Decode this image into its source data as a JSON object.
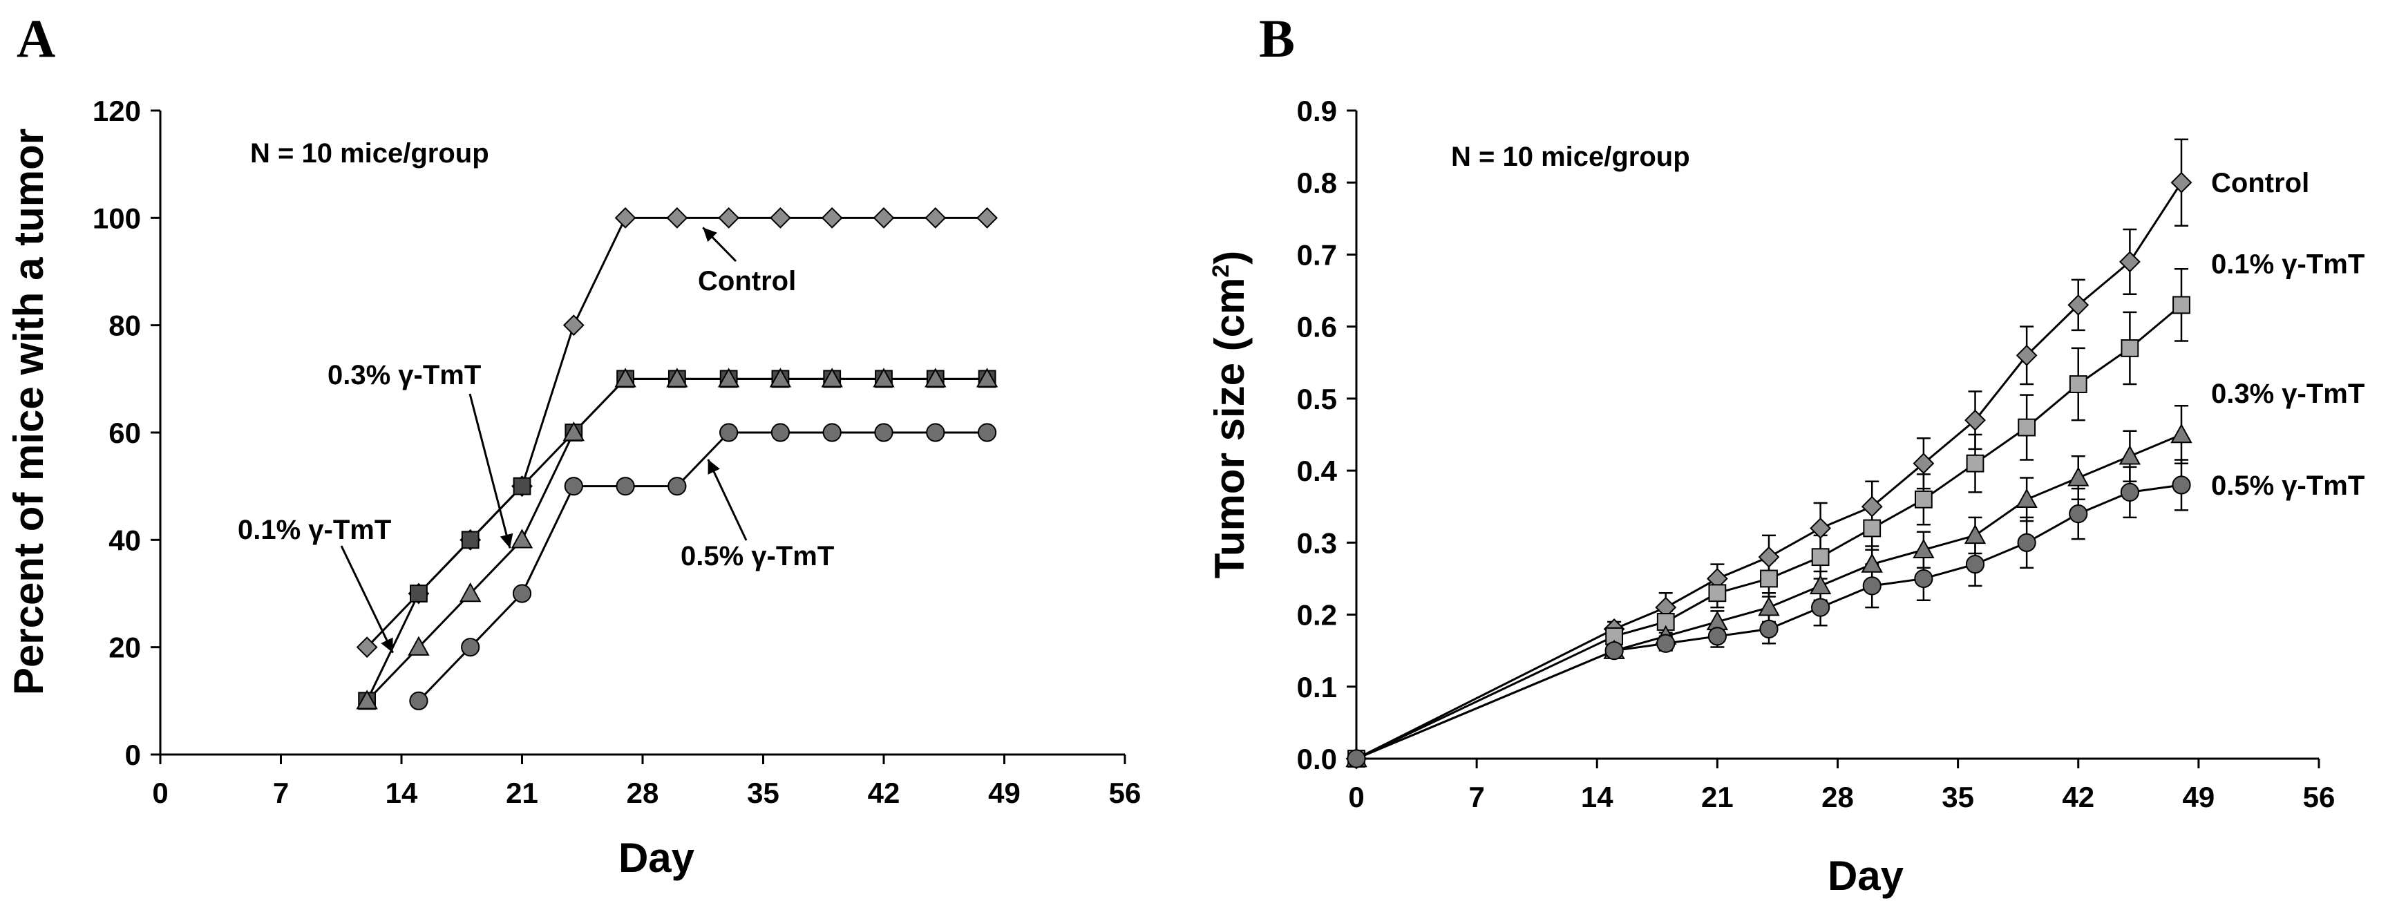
{
  "chart_data": [
    {
      "panel": "A",
      "type": "line",
      "xlabel": "Day",
      "ylabel": "Percent of mice with a tumor",
      "xlim": [
        0,
        56
      ],
      "ylim": [
        0,
        120
      ],
      "xticks": [
        0,
        7,
        14,
        21,
        28,
        35,
        42,
        49,
        56
      ],
      "yticks": [
        0,
        20,
        40,
        60,
        80,
        100,
        120
      ],
      "annotations": [
        {
          "id": "n",
          "text": "N = 10 mice/group"
        },
        {
          "id": "control",
          "text": "Control",
          "series": "Control"
        },
        {
          "id": "t03",
          "text": "0.3% γ-TmT",
          "series": "0.3% γ-TmT"
        },
        {
          "id": "t01",
          "text": "0.1% γ-TmT",
          "series": "0.1% γ-TmT"
        },
        {
          "id": "t05",
          "text": "0.5% γ-TmT",
          "series": "0.5% γ-TmT"
        }
      ],
      "series": [
        {
          "name": "Control",
          "marker": "diamond",
          "x": [
            12,
            15,
            18,
            21,
            24,
            27,
            30,
            33,
            36,
            39,
            42,
            45,
            48
          ],
          "y": [
            20,
            30,
            40,
            50,
            80,
            100,
            100,
            100,
            100,
            100,
            100,
            100,
            100
          ]
        },
        {
          "name": "0.1% γ-TmT",
          "marker": "square",
          "x": [
            12,
            15,
            18,
            21,
            24,
            27,
            30,
            33,
            36,
            39,
            42,
            45,
            48
          ],
          "y": [
            10,
            30,
            40,
            50,
            60,
            70,
            70,
            70,
            70,
            70,
            70,
            70,
            70
          ]
        },
        {
          "name": "0.3% γ-TmT",
          "marker": "triangle",
          "x": [
            12,
            15,
            18,
            21,
            24,
            27,
            30,
            33,
            36,
            39,
            42,
            45,
            48
          ],
          "y": [
            10,
            20,
            30,
            40,
            60,
            70,
            70,
            70,
            70,
            70,
            70,
            70,
            70
          ]
        },
        {
          "name": "0.5% γ-TmT",
          "marker": "circle",
          "x": [
            15,
            18,
            21,
            24,
            27,
            30,
            33,
            36,
            39,
            42,
            45,
            48
          ],
          "y": [
            10,
            20,
            30,
            50,
            50,
            50,
            60,
            60,
            60,
            60,
            60,
            60
          ]
        }
      ]
    },
    {
      "panel": "B",
      "type": "line",
      "xlabel": "Day",
      "ylabel": "Tumor size (cm",
      "ylabel_sup": "2",
      "ylabel_end": ")",
      "xlim": [
        0,
        56
      ],
      "ylim": [
        0,
        0.9
      ],
      "xticks": [
        0,
        7,
        14,
        21,
        28,
        35,
        42,
        49,
        56
      ],
      "yticks": [
        "0.0",
        "0.1",
        "0.2",
        "0.3",
        "0.4",
        "0.5",
        "0.6",
        "0.7",
        "0.8",
        "0.9"
      ],
      "annotations": [
        {
          "id": "n",
          "text": "N = 10 mice/group"
        }
      ],
      "series": [
        {
          "name": "Control",
          "label": "Control",
          "marker": "diamond",
          "x": [
            0,
            15,
            18,
            21,
            24,
            27,
            30,
            33,
            36,
            39,
            42,
            45,
            48
          ],
          "y": [
            0.0,
            0.18,
            0.21,
            0.25,
            0.28,
            0.32,
            0.35,
            0.41,
            0.47,
            0.56,
            0.63,
            0.69,
            0.8
          ],
          "err": [
            0,
            0.01,
            0.02,
            0.02,
            0.03,
            0.035,
            0.035,
            0.035,
            0.04,
            0.04,
            0.035,
            0.045,
            0.06
          ]
        },
        {
          "name": "0.1% γ-TmT",
          "label": "0.1% γ-TmT",
          "marker": "square",
          "x": [
            0,
            15,
            18,
            21,
            24,
            27,
            30,
            33,
            36,
            39,
            42,
            45,
            48
          ],
          "y": [
            0.0,
            0.17,
            0.19,
            0.23,
            0.25,
            0.28,
            0.32,
            0.36,
            0.41,
            0.46,
            0.52,
            0.57,
            0.63
          ],
          "err": [
            0,
            0.01,
            0.015,
            0.02,
            0.025,
            0.03,
            0.03,
            0.035,
            0.04,
            0.045,
            0.05,
            0.05,
            0.05
          ]
        },
        {
          "name": "0.3% γ-TmT",
          "label": "0.3% γ-TmT",
          "marker": "triangle",
          "x": [
            0,
            15,
            18,
            21,
            24,
            27,
            30,
            33,
            36,
            39,
            42,
            45,
            48
          ],
          "y": [
            0.0,
            0.15,
            0.17,
            0.19,
            0.21,
            0.24,
            0.27,
            0.29,
            0.31,
            0.36,
            0.39,
            0.42,
            0.45
          ],
          "err": [
            0,
            0.01,
            0.01,
            0.015,
            0.02,
            0.02,
            0.025,
            0.025,
            0.025,
            0.03,
            0.03,
            0.035,
            0.04
          ]
        },
        {
          "name": "0.5% γ-TmT",
          "label": "0.5% γ-TmT",
          "marker": "circle",
          "x": [
            0,
            15,
            18,
            21,
            24,
            27,
            30,
            33,
            36,
            39,
            42,
            45,
            48
          ],
          "y": [
            0.0,
            0.15,
            0.16,
            0.17,
            0.18,
            0.21,
            0.24,
            0.25,
            0.27,
            0.3,
            0.34,
            0.37,
            0.38
          ],
          "err": [
            0,
            0.01,
            0.01,
            0.015,
            0.02,
            0.025,
            0.03,
            0.03,
            0.03,
            0.035,
            0.035,
            0.035,
            0.035
          ]
        }
      ]
    }
  ],
  "colors": {
    "Control": "#8c8c8c",
    "0.1% γ-TmT": "#4a4a4a",
    "0.3% γ-TmT": "#7a7a7a",
    "0.5% γ-TmT": "#6e6e6e",
    "0.1% γ-TmT-B": "#a8a8a8",
    "axis": "#000000"
  }
}
